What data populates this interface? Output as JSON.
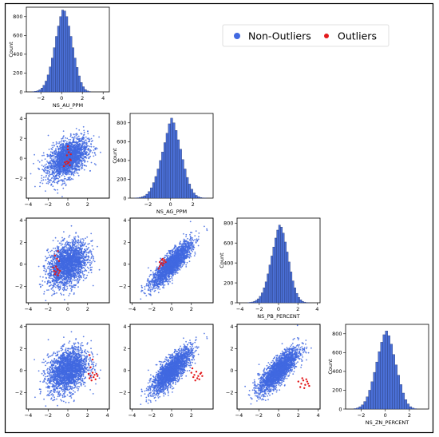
{
  "chart_data": {
    "type": "scatter",
    "kind": "pairplot",
    "variables": [
      "NS_AU_PPM",
      "NS_AG_PPM",
      "NS_PB_PERCENT",
      "NS_ZN_PERCENT"
    ],
    "diagonal": "histogram",
    "histogram_ylabel": "Count",
    "legend": {
      "placement": "top-right",
      "entries": [
        {
          "label": "Non-Outliers",
          "color": "#4169e1"
        },
        {
          "label": "Outliers",
          "color": "#e31a1c"
        }
      ]
    },
    "histograms": [
      {
        "variable": "NS_AU_PPM",
        "bin_edges": [
          -2.8,
          -2.6,
          -2.4,
          -2.2,
          -2.0,
          -1.8,
          -1.6,
          -1.4,
          -1.2,
          -1.0,
          -0.8,
          -0.6,
          -0.4,
          -0.2,
          0.0,
          0.2,
          0.4,
          0.6,
          0.8,
          1.0,
          1.2,
          1.4,
          1.6,
          1.8,
          2.0,
          2.2,
          2.4,
          2.6,
          2.8
        ],
        "counts": [
          3,
          6,
          12,
          22,
          40,
          70,
          115,
          180,
          265,
          360,
          470,
          590,
          700,
          800,
          870,
          860,
          800,
          700,
          590,
          470,
          360,
          260,
          170,
          100,
          55,
          25,
          10,
          4
        ],
        "xlim": [
          -3.4,
          4.6
        ],
        "ylim": [
          0,
          900
        ],
        "xticks": [
          -2,
          0,
          2,
          4
        ],
        "yticks": [
          0,
          200,
          400,
          600,
          800
        ]
      },
      {
        "variable": "NS_AG_PPM",
        "bin_edges": [
          -3.2,
          -3.0,
          -2.8,
          -2.6,
          -2.4,
          -2.2,
          -2.0,
          -1.8,
          -1.6,
          -1.4,
          -1.2,
          -1.0,
          -0.8,
          -0.6,
          -0.4,
          -0.2,
          0.0,
          0.2,
          0.4,
          0.6,
          0.8,
          1.0,
          1.2,
          1.4,
          1.6,
          1.8,
          2.0,
          2.2,
          2.4,
          2.6,
          2.8,
          3.0,
          3.2
        ],
        "counts": [
          2,
          4,
          8,
          15,
          25,
          42,
          70,
          110,
          165,
          230,
          310,
          400,
          490,
          590,
          690,
          790,
          850,
          800,
          720,
          620,
          520,
          410,
          310,
          220,
          150,
          95,
          55,
          30,
          15,
          7,
          3,
          1
        ],
        "xlim": [
          -3.6,
          3.8
        ],
        "ylim": [
          0,
          900
        ],
        "xticks": [
          -2,
          0,
          2
        ],
        "yticks": [
          0,
          200,
          400,
          600,
          800
        ]
      },
      {
        "variable": "NS_PB_PERCENT",
        "bin_edges": [
          -3.2,
          -3.0,
          -2.8,
          -2.6,
          -2.4,
          -2.2,
          -2.0,
          -1.8,
          -1.6,
          -1.4,
          -1.2,
          -1.0,
          -0.8,
          -0.6,
          -0.4,
          -0.2,
          0.0,
          0.2,
          0.4,
          0.6,
          0.8,
          1.0,
          1.2,
          1.4,
          1.6,
          1.8,
          2.0,
          2.2,
          2.4,
          2.6,
          2.8,
          3.0,
          3.2
        ],
        "counts": [
          2,
          5,
          8,
          15,
          25,
          40,
          65,
          100,
          150,
          210,
          290,
          380,
          470,
          560,
          650,
          730,
          780,
          760,
          700,
          610,
          510,
          410,
          310,
          220,
          150,
          95,
          55,
          30,
          15,
          7,
          3,
          1
        ],
        "xlim": [
          -4.3,
          4.3
        ],
        "ylim": [
          0,
          850
        ],
        "xticks": [
          -4,
          -2,
          0,
          2,
          4
        ],
        "yticks": [
          0,
          200,
          400,
          600,
          800
        ]
      },
      {
        "variable": "NS_ZN_PERCENT",
        "bin_edges": [
          -2.6,
          -2.4,
          -2.2,
          -2.0,
          -1.8,
          -1.6,
          -1.4,
          -1.2,
          -1.0,
          -0.8,
          -0.6,
          -0.4,
          -0.2,
          0.0,
          0.2,
          0.4,
          0.6,
          0.8,
          1.0,
          1.2,
          1.4,
          1.6,
          1.8,
          2.0,
          2.2,
          2.4,
          2.6
        ],
        "counts": [
          5,
          12,
          25,
          45,
          80,
          130,
          200,
          290,
          390,
          500,
          610,
          710,
          790,
          830,
          780,
          690,
          580,
          470,
          360,
          260,
          170,
          100,
          55,
          25,
          10,
          4
        ],
        "xlim": [
          -3.3,
          3.6
        ],
        "ylim": [
          0,
          900
        ],
        "xticks": [
          -2,
          0,
          2
        ],
        "yticks": [
          0,
          200,
          400,
          600,
          800
        ]
      }
    ],
    "scatter_panels": [
      {
        "x_var": "NS_AU_PPM",
        "y_var": "NS_AG_PPM",
        "xlim": [
          -4.2,
          4.2
        ],
        "ylim": [
          -4.0,
          4.5
        ],
        "xticks": [
          -4,
          -2,
          0,
          2
        ],
        "yticks": [
          -2,
          0,
          2,
          4
        ],
        "cloud": {
          "n": 2200,
          "mean": [
            0.0,
            0.0
          ],
          "sd": [
            1.0,
            1.0
          ],
          "corr": 0.45
        },
        "outliers": [
          [
            -0.3,
            -0.4
          ],
          [
            -0.2,
            -0.6
          ],
          [
            -0.1,
            -0.3
          ],
          [
            0.0,
            -0.5
          ],
          [
            0.1,
            -0.4
          ],
          [
            0.2,
            -0.7
          ],
          [
            0.3,
            -0.2
          ],
          [
            -0.4,
            -0.8
          ],
          [
            0.0,
            1.2
          ],
          [
            0.1,
            0.6
          ],
          [
            -0.1,
            0.3
          ],
          [
            0.2,
            -0.1
          ],
          [
            0.3,
            0.4
          ],
          [
            0.0,
            0.9
          ]
        ]
      },
      {
        "x_var": "NS_AU_PPM",
        "y_var": "NS_PB_PERCENT",
        "xlim": [
          -4.2,
          4.2
        ],
        "ylim": [
          -3.5,
          4.2
        ],
        "xticks": [
          -4,
          -2,
          0,
          2
        ],
        "yticks": [
          -2,
          0,
          2,
          4
        ],
        "cloud": {
          "n": 2200,
          "mean": [
            0.0,
            0.0
          ],
          "sd": [
            1.0,
            1.0
          ],
          "corr": 0.35
        },
        "outliers": [
          [
            -1.4,
            -0.6
          ],
          [
            -1.2,
            -0.7
          ],
          [
            -1.0,
            -0.5
          ],
          [
            -1.3,
            -0.9
          ],
          [
            -1.1,
            -0.4
          ],
          [
            -0.9,
            -0.8
          ],
          [
            -1.5,
            -0.3
          ],
          [
            -1.0,
            -1.0
          ],
          [
            -0.8,
            -0.6
          ],
          [
            -1.2,
            -0.2
          ],
          [
            -1.1,
            0.5
          ],
          [
            -1.0,
            1.2
          ],
          [
            -1.3,
            0.8
          ],
          [
            -0.9,
            0.3
          ]
        ]
      },
      {
        "x_var": "NS_AG_PPM",
        "y_var": "NS_PB_PERCENT",
        "xlim": [
          -4.2,
          4.2
        ],
        "ylim": [
          -3.5,
          4.2
        ],
        "xticks": [
          -4,
          -2,
          0,
          2
        ],
        "yticks": [
          -2,
          0,
          2,
          4
        ],
        "cloud": {
          "n": 2200,
          "mean": [
            0.0,
            0.0
          ],
          "sd": [
            1.0,
            1.0
          ],
          "corr": 0.85
        },
        "outliers": [
          [
            -1.2,
            -0.2
          ],
          [
            -1.0,
            0.1
          ],
          [
            -0.8,
            0.3
          ],
          [
            -1.1,
            0.0
          ],
          [
            -0.9,
            -0.1
          ],
          [
            -0.7,
            0.4
          ],
          [
            -1.3,
            -0.4
          ],
          [
            -0.8,
            0.1
          ],
          [
            -1.0,
            0.4
          ],
          [
            -0.6,
            0.2
          ],
          [
            -1.2,
            0.2
          ],
          [
            -0.9,
            0.5
          ]
        ]
      },
      {
        "x_var": "NS_AU_PPM",
        "y_var": "NS_ZN_PERCENT",
        "xlim": [
          -4.2,
          4.2
        ],
        "ylim": [
          -3.5,
          4.2
        ],
        "xticks": [
          -4,
          -2,
          0,
          2,
          4
        ],
        "yticks": [
          -2,
          0,
          2,
          4
        ],
        "cloud": {
          "n": 2200,
          "mean": [
            0.0,
            0.0
          ],
          "sd": [
            1.0,
            1.0
          ],
          "corr": 0.3
        },
        "outliers": [
          [
            2.1,
            -0.3
          ],
          [
            2.3,
            -0.5
          ],
          [
            2.5,
            -0.2
          ],
          [
            2.7,
            -0.4
          ],
          [
            2.2,
            -0.7
          ],
          [
            2.6,
            -0.6
          ],
          [
            2.9,
            -0.3
          ],
          [
            2.4,
            -0.9
          ],
          [
            3.0,
            -0.5
          ],
          [
            2.8,
            -0.8
          ],
          [
            2.3,
            0.3
          ],
          [
            2.5,
            1.0
          ],
          [
            2.2,
            1.4
          ]
        ]
      },
      {
        "x_var": "NS_AG_PPM",
        "y_var": "NS_ZN_PERCENT",
        "xlim": [
          -4.2,
          4.2
        ],
        "ylim": [
          -3.5,
          4.2
        ],
        "xticks": [
          -4,
          -2,
          0,
          2
        ],
        "yticks": [
          -2,
          0,
          2,
          4
        ],
        "cloud": {
          "n": 2200,
          "mean": [
            0.0,
            0.0
          ],
          "sd": [
            1.0,
            1.0
          ],
          "corr": 0.8
        },
        "outliers": [
          [
            2.0,
            -0.2
          ],
          [
            2.3,
            -0.4
          ],
          [
            2.5,
            -0.1
          ],
          [
            2.7,
            -0.5
          ],
          [
            2.9,
            -0.3
          ],
          [
            2.2,
            -0.6
          ],
          [
            2.6,
            -0.7
          ],
          [
            3.0,
            -0.2
          ],
          [
            2.4,
            -0.9
          ],
          [
            2.8,
            -0.8
          ],
          [
            3.1,
            -0.5
          ],
          [
            2.1,
            0.2
          ]
        ]
      },
      {
        "x_var": "NS_PB_PERCENT",
        "y_var": "NS_ZN_PERCENT",
        "xlim": [
          -4.2,
          4.2
        ],
        "ylim": [
          -3.5,
          4.2
        ],
        "xticks": [
          -4,
          -2,
          0,
          2,
          4
        ],
        "yticks": [
          -2,
          0,
          2,
          4
        ],
        "cloud": {
          "n": 2200,
          "mean": [
            0.0,
            0.0
          ],
          "sd": [
            1.0,
            1.0
          ],
          "corr": 0.8
        },
        "outliers": [
          [
            2.0,
            -1.0
          ],
          [
            2.3,
            -1.2
          ],
          [
            2.5,
            -0.9
          ],
          [
            2.7,
            -1.3
          ],
          [
            2.9,
            -1.0
          ],
          [
            2.2,
            -1.5
          ],
          [
            2.6,
            -1.6
          ],
          [
            3.0,
            -1.2
          ],
          [
            2.4,
            -0.7
          ],
          [
            2.8,
            -0.8
          ],
          [
            3.1,
            -1.4
          ]
        ]
      }
    ]
  }
}
